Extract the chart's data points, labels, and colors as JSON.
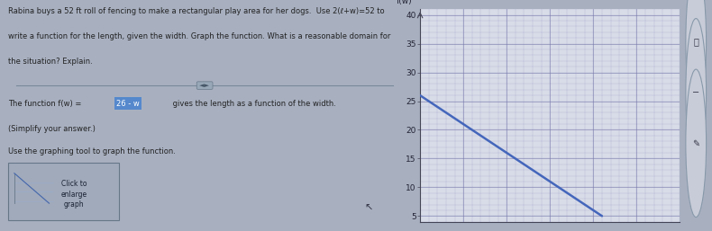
{
  "fig_width": 7.9,
  "fig_height": 2.57,
  "dpi": 100,
  "bg_color": "#a8b0c0",
  "text_panel_bg": "#b8bfcc",
  "graph_bg": "#d8dce8",
  "graph_border_color": "#3344aa",
  "grid_color": "#8888bb",
  "grid_major_color": "#7777aa",
  "line_color": "#4466bb",
  "axis_label_color": "#222233",
  "ylabel": "f(w)",
  "yticks": [
    5,
    10,
    15,
    20,
    25,
    30,
    35,
    40
  ],
  "ymin": 4,
  "ymax": 41,
  "xmin": 0,
  "xmax": 30,
  "line_x_start": 0,
  "line_x_end": 21,
  "intercept": 26,
  "slope": -1,
  "font_size_small": 5.5,
  "font_size_body": 6.0,
  "font_size_axis": 6.5,
  "divider_color": "#778899",
  "highlight_color": "#5588cc",
  "btn_bg": "#a0aabb",
  "btn_border": "#667788",
  "text_color": "#222222",
  "icon_color": "#444455"
}
